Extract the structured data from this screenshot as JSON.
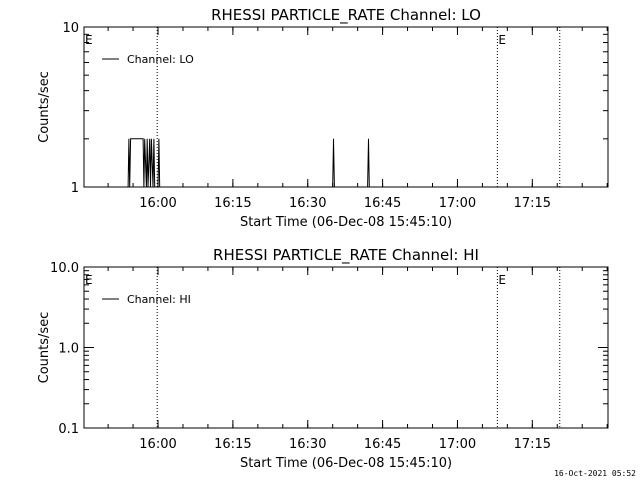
{
  "chart_data": [
    {
      "type": "line",
      "title": "RHESSI PARTICLE_RATE Channel: LO",
      "xlabel": "Start Time (06-Dec-08 15:45:10)",
      "ylabel": "Counts/sec",
      "yscale": "log",
      "ylim": [
        1,
        10
      ],
      "xlim": [
        "15:45:10",
        "17:30:10"
      ],
      "xticks": [
        "16:00",
        "16:15",
        "16:30",
        "16:45",
        "17:00",
        "17:15"
      ],
      "yticks": [
        "1",
        "10"
      ],
      "grid": false,
      "legend": "top-left",
      "legend_entries": [
        "Channel: LO"
      ],
      "series": [
        {
          "name": "Channel: LO",
          "x": [
            "15:54:00",
            "15:54:10",
            "15:54:20",
            "15:54:30",
            "15:54:40",
            "15:57:00",
            "15:57:10",
            "15:57:20",
            "15:57:40",
            "15:57:50",
            "15:58:00",
            "15:58:20",
            "15:58:30",
            "15:58:40",
            "15:59:00",
            "15:59:10",
            "15:59:20",
            "16:00:00",
            "16:00:10",
            "16:00:20",
            "16:35:00",
            "16:35:10",
            "16:35:20",
            "16:42:00",
            "16:42:10",
            "16:42:20"
          ],
          "values": [
            1,
            2,
            1,
            2,
            2,
            2,
            1,
            2,
            1,
            2,
            1,
            2,
            1,
            2,
            1,
            2,
            1,
            1,
            2,
            1,
            1,
            2,
            1,
            1,
            2,
            1
          ]
        }
      ],
      "annotations": [
        {
          "text": "E",
          "x": "15:45:10"
        },
        {
          "text": "E",
          "x": "17:08:00"
        }
      ],
      "vlines": [
        "15:59:50",
        "17:08:00",
        "17:20:30"
      ]
    },
    {
      "type": "line",
      "title": "RHESSI PARTICLE_RATE Channel: HI",
      "xlabel": "Start Time (06-Dec-08 15:45:10)",
      "ylabel": "Counts/sec",
      "yscale": "log",
      "ylim": [
        0.1,
        10
      ],
      "xlim": [
        "15:45:10",
        "17:30:10"
      ],
      "xticks": [
        "16:00",
        "16:15",
        "16:30",
        "16:45",
        "17:00",
        "17:15"
      ],
      "yticks": [
        "0.1",
        "1.0",
        "10.0"
      ],
      "grid": false,
      "legend": "top-left",
      "legend_entries": [
        "Channel: HI"
      ],
      "series": [
        {
          "name": "Channel: HI",
          "x": [],
          "values": []
        }
      ],
      "annotations": [
        {
          "text": "E",
          "x": "15:45:10"
        },
        {
          "text": "E",
          "x": "17:08:00"
        }
      ],
      "vlines": [
        "15:59:50",
        "17:08:00",
        "17:20:30"
      ]
    }
  ],
  "footer": "16-Oct-2021 05:52"
}
